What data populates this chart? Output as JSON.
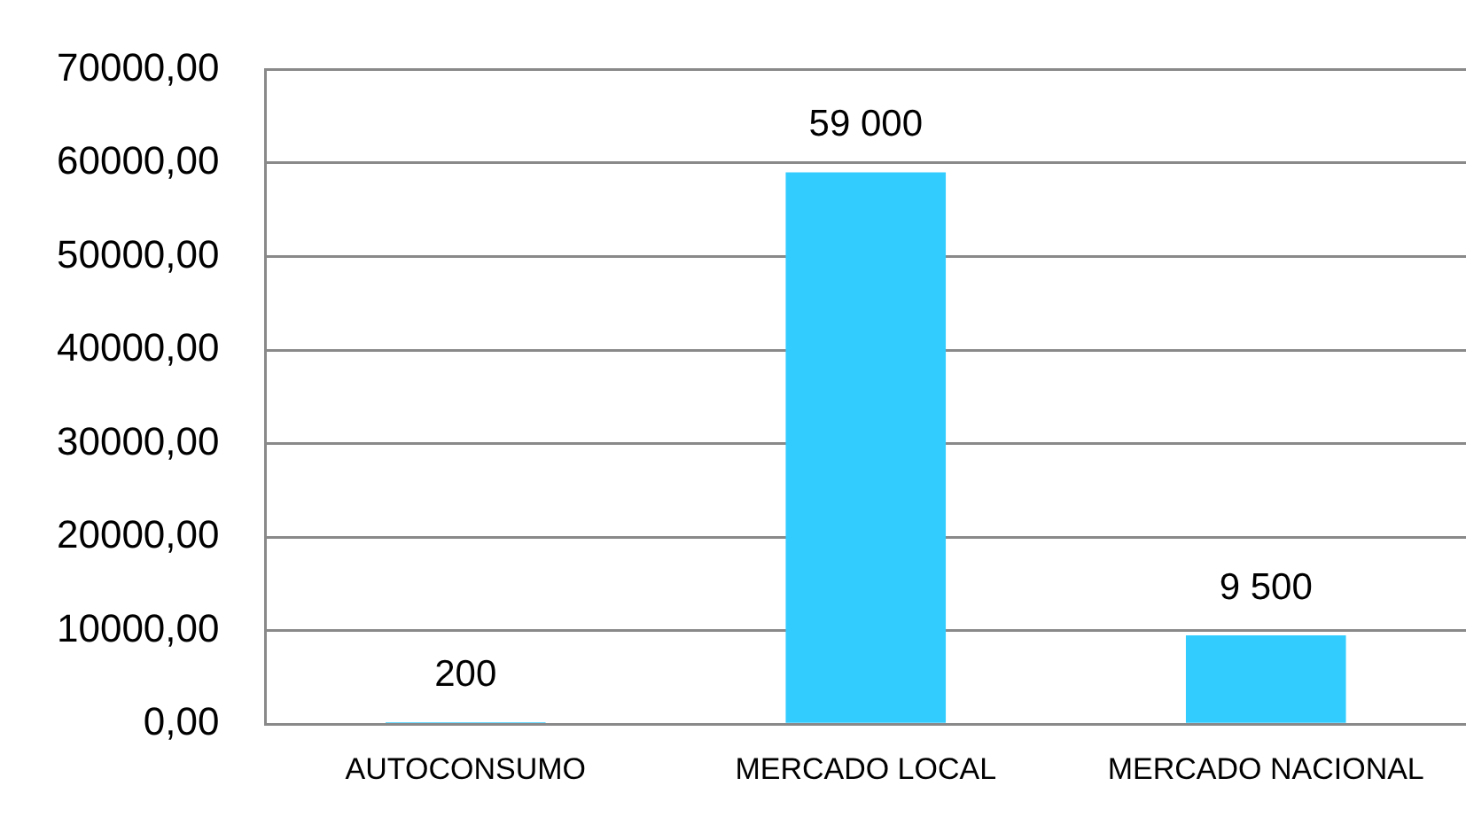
{
  "chart_data": {
    "type": "bar",
    "categories": [
      "AUTOCONSUMO",
      "MERCADO LOCAL",
      "MERCADO NACIONAL"
    ],
    "values": [
      200,
      59000,
      9500
    ],
    "value_labels": [
      "200",
      "59 000",
      "9 500"
    ],
    "color": "#33ccff",
    "ylim": [
      0,
      70000
    ],
    "yticks": [
      {
        "value": 0,
        "label": "0,00"
      },
      {
        "value": 10000,
        "label": "10000,00"
      },
      {
        "value": 20000,
        "label": "20000,00"
      },
      {
        "value": 30000,
        "label": "30000,00"
      },
      {
        "value": 40000,
        "label": "40000,00"
      },
      {
        "value": 50000,
        "label": "50000,00"
      },
      {
        "value": 60000,
        "label": "60000,00"
      },
      {
        "value": 70000,
        "label": "70000,00"
      }
    ],
    "grid": "y"
  }
}
